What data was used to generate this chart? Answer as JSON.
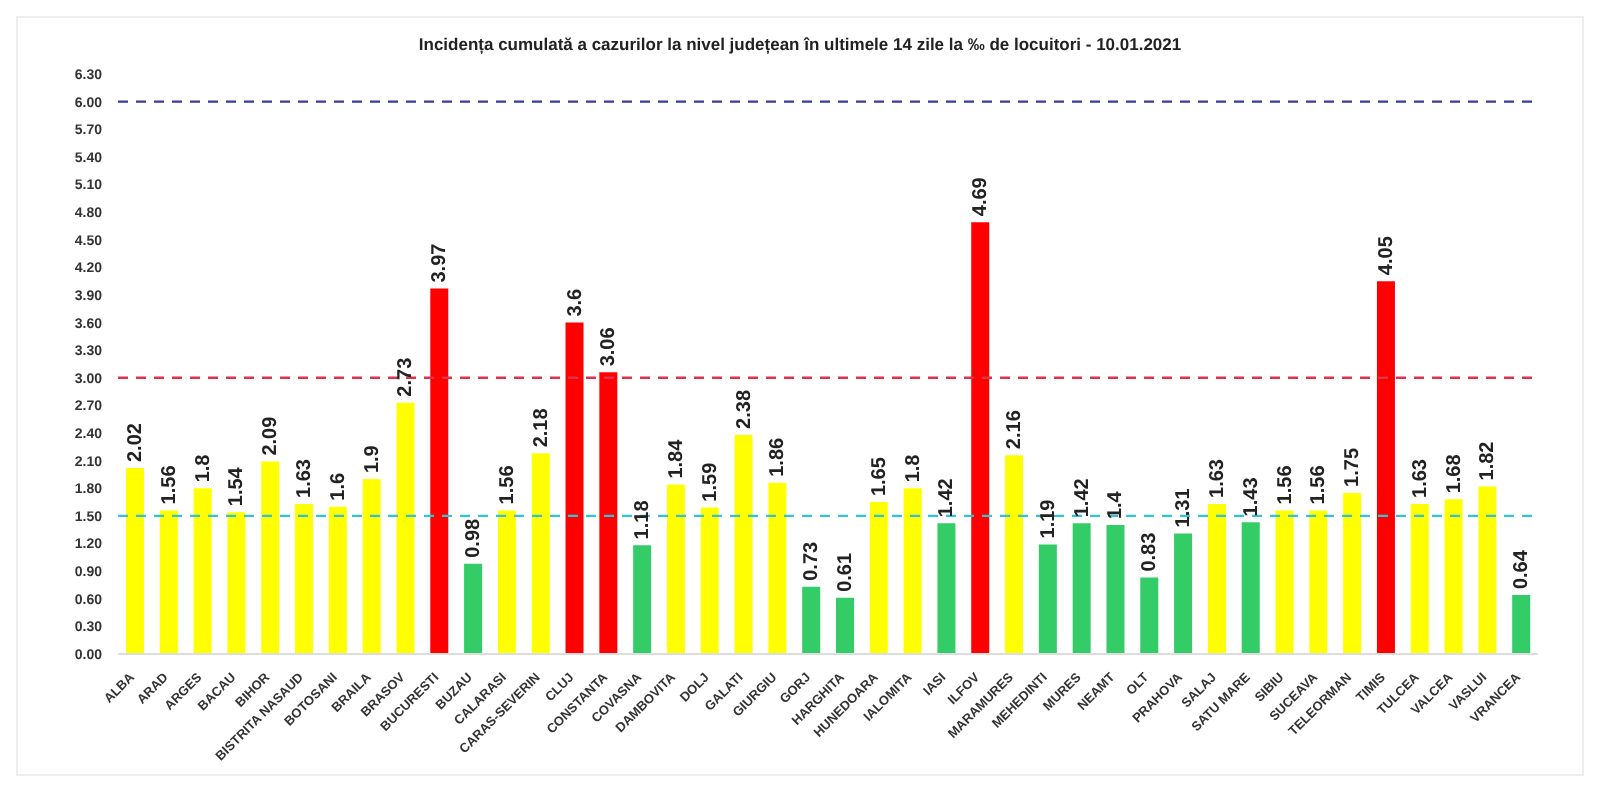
{
  "chart_data": {
    "type": "bar",
    "title": "Incidența cumulată a cazurilor la nivel județean în ultimele 14 zile la ‰ de locuitori - 10.01.2021",
    "categories": [
      "ALBA",
      "ARAD",
      "ARGES",
      "BACAU",
      "BIHOR",
      "BISTRITA NASAUD",
      "BOTOSANI",
      "BRAILA",
      "BRASOV",
      "BUCURESTI",
      "BUZAU",
      "CALARASI",
      "CARAS-SEVERIN",
      "CLUJ",
      "CONSTANTA",
      "COVASNA",
      "DAMBOVITA",
      "DOLJ",
      "GALATI",
      "GIURGIU",
      "GORJ",
      "HARGHITA",
      "HUNEDOARA",
      "IALOMITA",
      "IASI",
      "ILFOV",
      "MARAMURES",
      "MEHEDINTI",
      "MURES",
      "NEAMT",
      "OLT",
      "PRAHOVA",
      "SALAJ",
      "SATU MARE",
      "SIBIU",
      "SUCEAVA",
      "TELEORMAN",
      "TIMIS",
      "TULCEA",
      "VALCEA",
      "VASLUI",
      "VRANCEA"
    ],
    "values": [
      2.02,
      1.56,
      1.8,
      1.54,
      2.09,
      1.63,
      1.6,
      1.9,
      2.73,
      3.97,
      0.98,
      1.56,
      2.18,
      3.6,
      3.06,
      1.18,
      1.84,
      1.59,
      2.38,
      1.86,
      0.73,
      0.61,
      1.65,
      1.8,
      1.42,
      4.69,
      2.16,
      1.19,
      1.42,
      1.4,
      0.83,
      1.31,
      1.63,
      1.43,
      1.56,
      1.56,
      1.75,
      4.05,
      1.63,
      1.68,
      1.82,
      0.64
    ],
    "colors": [
      "#ffff00",
      "#ffff00",
      "#ffff00",
      "#ffff00",
      "#ffff00",
      "#ffff00",
      "#ffff00",
      "#ffff00",
      "#ffff00",
      "#ff0000",
      "#33cc66",
      "#ffff00",
      "#ffff00",
      "#ff0000",
      "#ff0000",
      "#33cc66",
      "#ffff00",
      "#ffff00",
      "#ffff00",
      "#ffff00",
      "#33cc66",
      "#33cc66",
      "#ffff00",
      "#ffff00",
      "#33cc66",
      "#ff0000",
      "#ffff00",
      "#33cc66",
      "#33cc66",
      "#33cc66",
      "#33cc66",
      "#33cc66",
      "#ffff00",
      "#33cc66",
      "#ffff00",
      "#ffff00",
      "#ffff00",
      "#ff0000",
      "#ffff00",
      "#ffff00",
      "#ffff00",
      "#33cc66"
    ],
    "ylim": [
      0,
      6.3
    ],
    "yticks": [
      {
        "value": 0,
        "label": "0.00"
      },
      {
        "value": 0.3,
        "label": "0.30"
      },
      {
        "value": 0.6,
        "label": "0.60"
      },
      {
        "value": 0.9,
        "label": "0.90"
      },
      {
        "value": 1.2,
        "label": "1.20"
      },
      {
        "value": 1.5,
        "label": "1.50"
      },
      {
        "value": 1.8,
        "label": "1.80"
      },
      {
        "value": 2.1,
        "label": "2.10"
      },
      {
        "value": 2.4,
        "label": "2.40"
      },
      {
        "value": 2.7,
        "label": "2.70"
      },
      {
        "value": 3,
        "label": "3.00"
      },
      {
        "value": 3.3,
        "label": "3.30"
      },
      {
        "value": 3.6,
        "label": "3.60"
      },
      {
        "value": 3.9,
        "label": "3.90"
      },
      {
        "value": 4.2,
        "label": "4.20"
      },
      {
        "value": 4.5,
        "label": "4.50"
      },
      {
        "value": 4.8,
        "label": "4.80"
      },
      {
        "value": 5.1,
        "label": "5.10"
      },
      {
        "value": 5.4,
        "label": "5.40"
      },
      {
        "value": 5.7,
        "label": "5.70"
      },
      {
        "value": 6,
        "label": "6.00"
      },
      {
        "value": 6.3,
        "label": "6.30"
      }
    ],
    "ref_lines": [
      {
        "axis": "y",
        "value": 1.5,
        "color": "#33c3d6",
        "line_style": "dashed"
      },
      {
        "axis": "y",
        "value": 3,
        "color": "#e0304a",
        "line_style": "dashed"
      },
      {
        "axis": "y",
        "value": 6,
        "color": "#3b3b9a",
        "line_style": "dashed"
      }
    ],
    "data_labels": true,
    "grid": false
  }
}
